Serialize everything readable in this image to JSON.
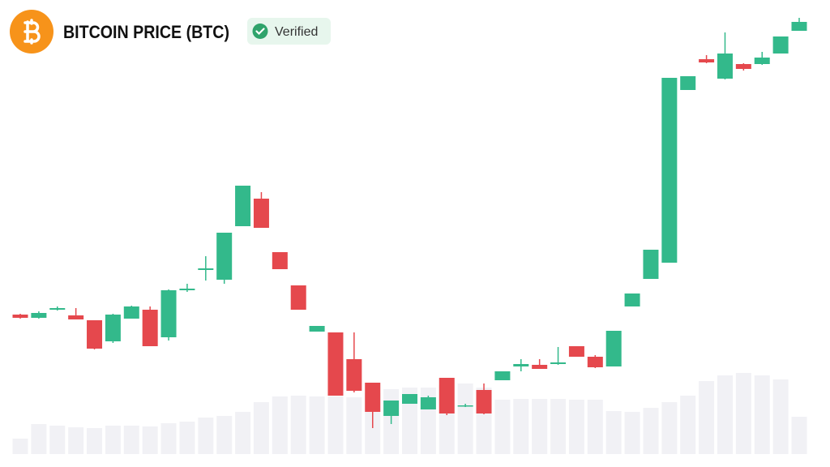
{
  "header": {
    "title": "BITCOIN PRICE (BTC)",
    "badge": "Verified"
  },
  "chart_data": {
    "type": "candlestick",
    "open": [
      172,
      168,
      178,
      171,
      165,
      139,
      167,
      178,
      144,
      202,
      227,
      215,
      281,
      315,
      249,
      208,
      151,
      150,
      117,
      88,
      47,
      62,
      55,
      94,
      59,
      79,
      91,
      108,
      110,
      111,
      133,
      120,
      108,
      182,
      216,
      236,
      449,
      487,
      463,
      481,
      481,
      494,
      522
    ],
    "high": [
      173,
      176,
      182,
      180,
      165,
      173,
      183,
      182,
      203,
      210,
      244,
      273,
      331,
      323,
      249,
      208,
      158,
      150,
      150,
      88,
      66,
      74,
      72,
      94,
      62,
      87,
      102,
      117,
      117,
      132,
      133,
      122,
      152,
      198,
      252,
      464,
      466,
      492,
      520,
      482,
      496,
      515,
      538
    ],
    "low": [
      167,
      167,
      177,
      166,
      129,
      137,
      167,
      133,
      140,
      200,
      214,
      210,
      281,
      279,
      228,
      178,
      151,
      72,
      76,
      32,
      37,
      62,
      55,
      48,
      58,
      49,
      91,
      102,
      105,
      110,
      120,
      106,
      108,
      182,
      216,
      236,
      449,
      482,
      462,
      473,
      480,
      494,
      522
    ],
    "close": [
      168,
      174,
      180,
      166,
      130,
      172,
      182,
      133,
      202,
      204,
      229,
      273,
      331,
      279,
      228,
      178,
      158,
      72,
      78,
      52,
      66,
      74,
      70,
      50,
      60,
      50,
      102,
      111,
      105,
      113,
      120,
      107,
      152,
      198,
      252,
      464,
      466,
      483,
      494,
      475,
      489,
      515,
      533
    ],
    "volume": [
      19,
      37,
      35,
      33,
      32,
      35,
      35,
      34,
      38,
      40,
      45,
      47,
      52,
      64,
      71,
      72,
      71,
      71,
      70,
      75,
      80,
      82,
      82,
      85,
      87,
      82,
      67,
      68,
      68,
      68,
      67,
      67,
      53,
      52,
      57,
      64,
      72,
      90,
      97,
      100,
      97,
      92,
      46
    ],
    "up_color": "#33b98b",
    "down_color": "#e5484d",
    "volume_color": "#f1f1f5",
    "ylim": [
      0,
      560
    ]
  }
}
